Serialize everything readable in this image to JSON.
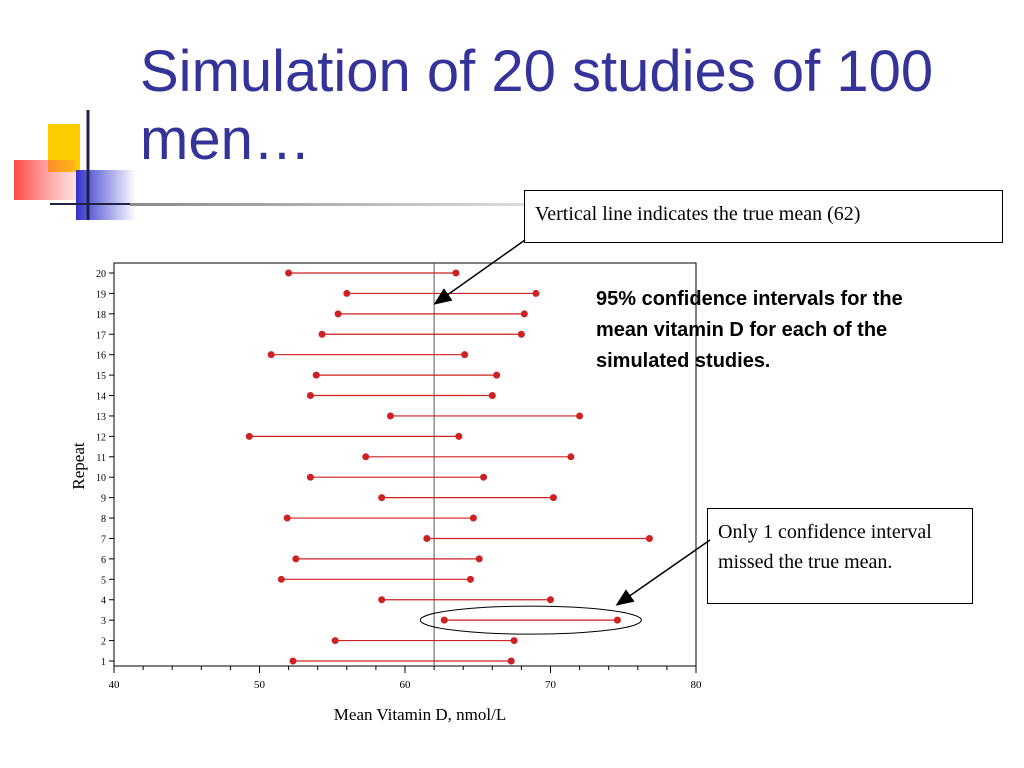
{
  "slide": {
    "title": "Simulation of 20 studies of 100 men…",
    "colors": {
      "title": "#333399",
      "interval": "#cc2222",
      "axis": "#000000"
    }
  },
  "callouts": {
    "true_mean": "Vertical line indicates the true mean (62)",
    "description": "95% confidence intervals for the mean vitamin D for each of the simulated studies.",
    "missed": "Only 1 confidence interval missed the true mean."
  },
  "chart_data": {
    "type": "interval",
    "xlabel": "Mean Vitamin D, nmol/L",
    "ylabel": "Repeat",
    "xlim": [
      40,
      80
    ],
    "x_ticks": [
      40,
      50,
      60,
      70,
      80
    ],
    "y_ticks": [
      1,
      2,
      3,
      4,
      5,
      6,
      7,
      8,
      9,
      10,
      11,
      12,
      13,
      14,
      15,
      16,
      17,
      18,
      19,
      20
    ],
    "reference_line": 62,
    "intervals": [
      {
        "repeat": 1,
        "low": 52.3,
        "high": 67.3
      },
      {
        "repeat": 2,
        "low": 55.2,
        "high": 67.5
      },
      {
        "repeat": 3,
        "low": 62.7,
        "high": 74.6
      },
      {
        "repeat": 4,
        "low": 58.4,
        "high": 70.0
      },
      {
        "repeat": 5,
        "low": 51.5,
        "high": 64.5
      },
      {
        "repeat": 6,
        "low": 52.5,
        "high": 65.1
      },
      {
        "repeat": 7,
        "low": 61.5,
        "high": 76.8
      },
      {
        "repeat": 8,
        "low": 51.9,
        "high": 64.7
      },
      {
        "repeat": 9,
        "low": 58.4,
        "high": 70.2
      },
      {
        "repeat": 10,
        "low": 53.5,
        "high": 65.4
      },
      {
        "repeat": 11,
        "low": 57.3,
        "high": 71.4
      },
      {
        "repeat": 12,
        "low": 49.3,
        "high": 63.7
      },
      {
        "repeat": 13,
        "low": 59.0,
        "high": 72.0
      },
      {
        "repeat": 14,
        "low": 53.5,
        "high": 66.0
      },
      {
        "repeat": 15,
        "low": 53.9,
        "high": 66.3
      },
      {
        "repeat": 16,
        "low": 50.8,
        "high": 64.1
      },
      {
        "repeat": 17,
        "low": 54.3,
        "high": 68.0
      },
      {
        "repeat": 18,
        "low": 55.4,
        "high": 68.2
      },
      {
        "repeat": 19,
        "low": 56.0,
        "high": 69.0
      },
      {
        "repeat": 20,
        "low": 52.0,
        "high": 63.5
      }
    ],
    "highlighted_repeat": 3
  }
}
